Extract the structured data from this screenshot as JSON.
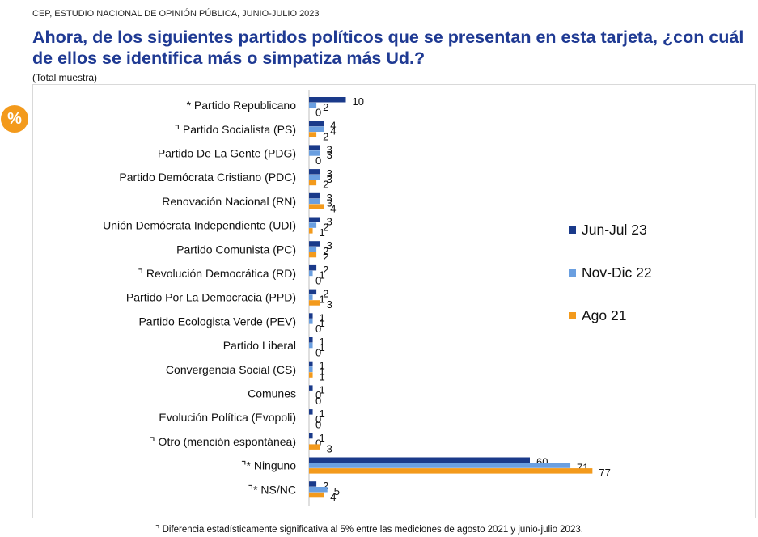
{
  "header": {
    "source": "CEP, ESTUDIO NACIONAL DE OPINIÓN PÚBLICA, JUNIO-JULIO 2023",
    "title": "Ahora, de los siguientes partidos políticos que se presentan en esta tarjeta, ¿con cuál de ellos se identifica más o simpatiza más Ud.?",
    "subtitle": "(Total muestra)",
    "badge": "%"
  },
  "footnote": "⌝ Diferencia estadísticamente significativa al 5% entre las mediciones de agosto 2021 y junio-julio 2023.",
  "colors": {
    "jun_jul_23": "#1a3a8a",
    "nov_dic_22": "#6a9fe0",
    "ago_21": "#f39a1c"
  },
  "chart_data": {
    "type": "bar",
    "orientation": "horizontal",
    "categories": [
      "* Partido Republicano",
      "⌝ Partido Socialista (PS)",
      "Partido De La Gente (PDG)",
      "Partido Demócrata Cristiano (PDC)",
      "Renovación Nacional (RN)",
      "Unión Demócrata Independiente (UDI)",
      "Partido Comunista (PC)",
      "⌝ Revolución Democrática (RD)",
      "Partido Por La Democracia (PPD)",
      "Partido Ecologista Verde (PEV)",
      "Partido Liberal",
      "Convergencia Social (CS)",
      "Comunes",
      "Evolución Política (Evopoli)",
      "⌝ Otro (mención espontánea)",
      "⌝* Ninguno",
      "⌝* NS/NC"
    ],
    "series": [
      {
        "name": "Jun-Jul 23",
        "color": "#1a3a8a",
        "values": [
          10,
          4,
          3,
          3,
          3,
          3,
          3,
          2,
          2,
          1,
          1,
          1,
          1,
          1,
          1,
          60,
          2
        ]
      },
      {
        "name": "Nov-Dic 22",
        "color": "#6a9fe0",
        "values": [
          2,
          4,
          3,
          3,
          3,
          2,
          2,
          1,
          1,
          1,
          1,
          1,
          0,
          0,
          0,
          71,
          5
        ]
      },
      {
        "name": "Ago 21",
        "color": "#f39a1c",
        "values": [
          0,
          2,
          0,
          2,
          4,
          1,
          2,
          0,
          3,
          0,
          0,
          1,
          0,
          0,
          3,
          77,
          4
        ],
        "value_labels": [
          "0",
          "2",
          "0",
          "2",
          "4",
          "1",
          "2",
          "0",
          "3",
          "0",
          "0",
          "1",
          "0",
          "0",
          "3",
          "77",
          "4"
        ]
      }
    ],
    "legend": {
      "position": "right",
      "entries": [
        "Jun-Jul 23",
        "Nov-Dic 22",
        "Ago 21"
      ]
    },
    "xlim": [
      0,
      100
    ],
    "grid": false,
    "data_labels": true
  }
}
